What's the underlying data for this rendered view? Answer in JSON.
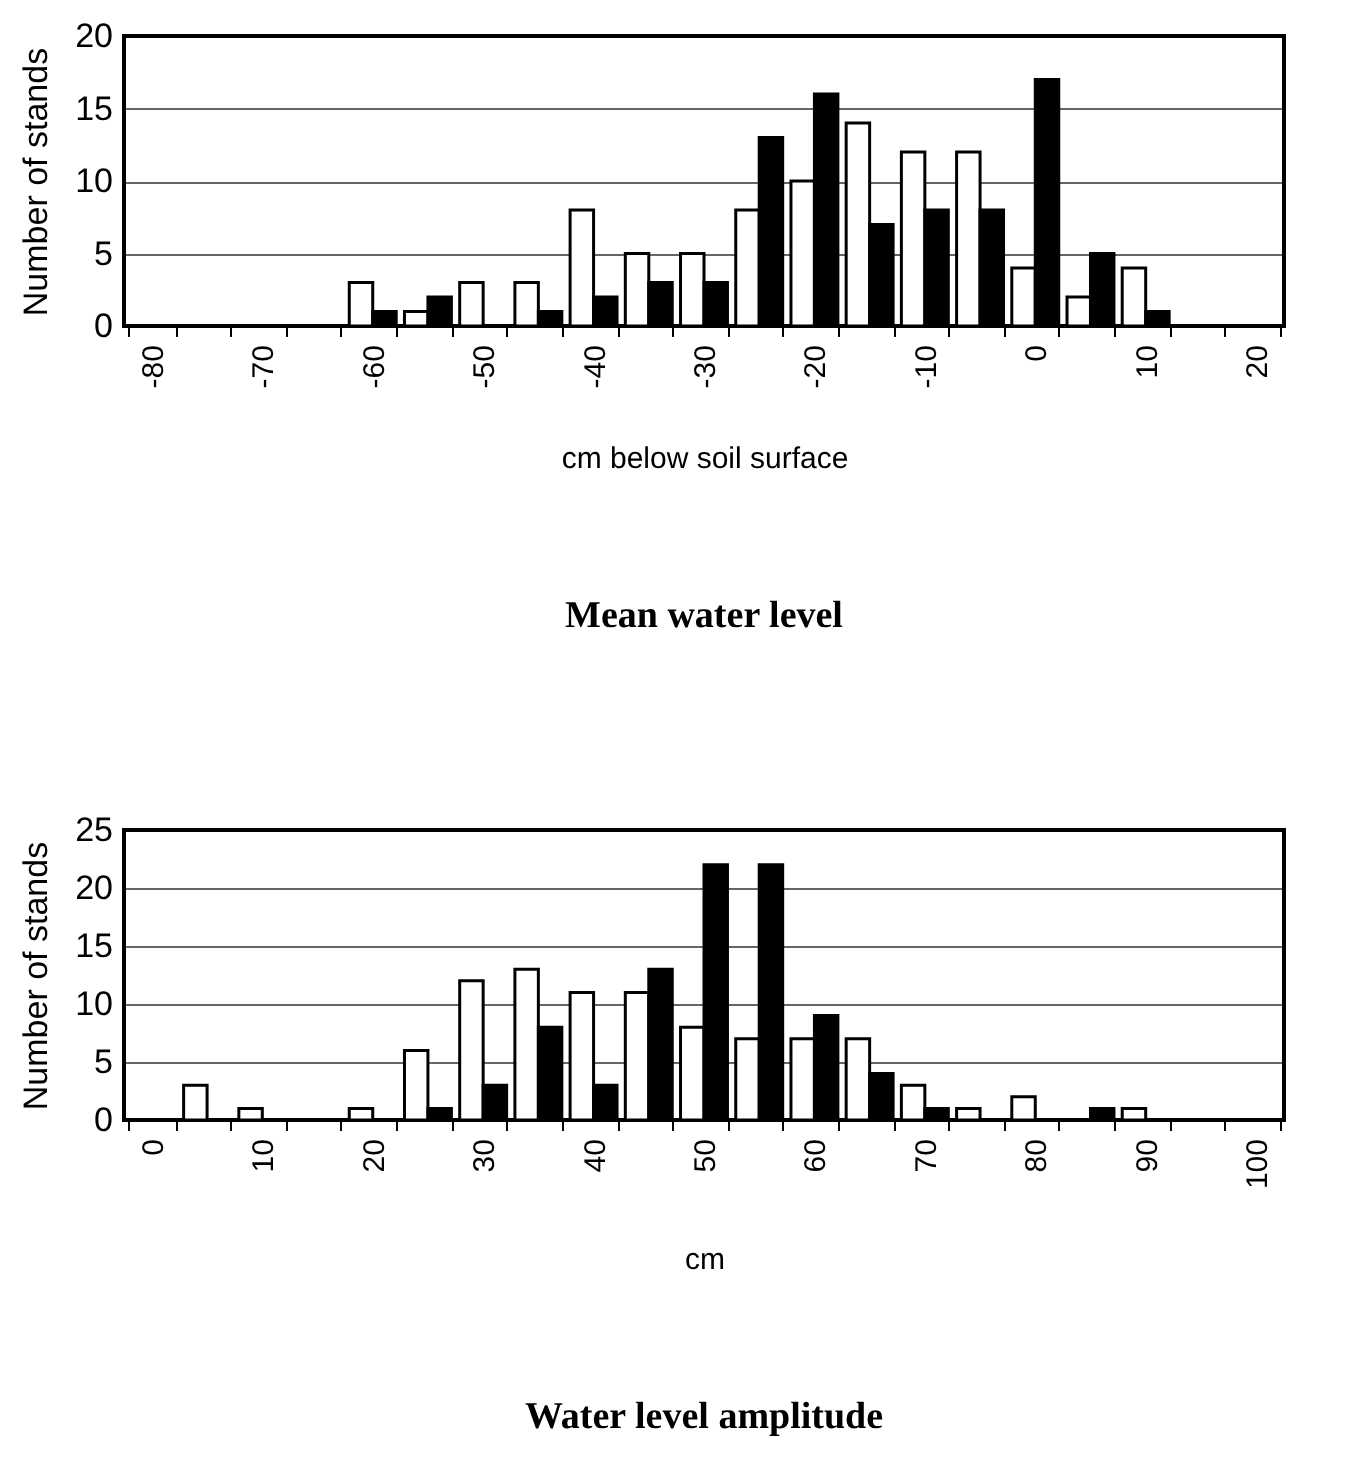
{
  "chart_data": [
    {
      "type": "bar",
      "title": "Mean water level",
      "xlabel": "cm below soil surface",
      "ylabel": "Number of stands",
      "categories": [
        "-80",
        null,
        "-70",
        null,
        "-60",
        null,
        "-50",
        null,
        "-40",
        null,
        "-30",
        null,
        "-20",
        null,
        "-10",
        null,
        "0",
        null,
        "10",
        null,
        "20"
      ],
      "series": [
        {
          "color": "#ffffff",
          "values": [
            0,
            0,
            0,
            0,
            3,
            1,
            3,
            3,
            8,
            5,
            5,
            8,
            10,
            14,
            12,
            12,
            4,
            2,
            4,
            0,
            0
          ]
        },
        {
          "color": "#000000",
          "values": [
            0,
            0,
            0,
            0,
            1,
            2,
            0,
            1,
            2,
            3,
            3,
            13,
            16,
            7,
            8,
            8,
            17,
            5,
            1,
            0,
            0
          ]
        }
      ],
      "ylim": [
        0,
        20
      ],
      "yticks": [
        0,
        5,
        10,
        15,
        20
      ],
      "grid": "y"
    },
    {
      "type": "bar",
      "title": "Water level amplitude",
      "xlabel": "cm",
      "ylabel": "Number of stands",
      "categories": [
        "0",
        null,
        "10",
        null,
        "20",
        null,
        "30",
        null,
        "40",
        null,
        "50",
        null,
        "60",
        null,
        "70",
        null,
        "80",
        null,
        "90",
        null,
        "100"
      ],
      "series": [
        {
          "color": "#ffffff",
          "values": [
            0,
            3,
            1,
            0,
            1,
            6,
            12,
            13,
            11,
            11,
            8,
            7,
            7,
            7,
            3,
            1,
            2,
            0,
            1,
            0,
            0
          ]
        },
        {
          "color": "#000000",
          "values": [
            0,
            0,
            0,
            0,
            0,
            1,
            3,
            8,
            3,
            13,
            22,
            22,
            9,
            4,
            1,
            0,
            0,
            1,
            0,
            0,
            0
          ]
        }
      ],
      "ylim": [
        0,
        25
      ],
      "yticks": [
        0,
        5,
        10,
        15,
        20,
        25
      ],
      "grid": "y"
    }
  ]
}
